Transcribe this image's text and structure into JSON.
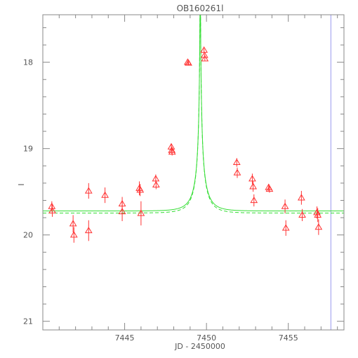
{
  "chart_data": {
    "type": "scatter",
    "title": "OB160261l",
    "xlabel": "JD - 2450000",
    "ylabel": "I",
    "xlim": [
      7440.0,
      7458.4
    ],
    "ylim": [
      21.1,
      17.45
    ],
    "y_inverted": true,
    "x_ticks": [
      7445,
      7450,
      7455
    ],
    "x_tick_labels": [
      "7445",
      "7450",
      "7455"
    ],
    "y_ticks": [
      18,
      19,
      20,
      21
    ],
    "y_tick_labels": [
      "18",
      "19",
      "20",
      "21"
    ],
    "grid": false,
    "legend": "none",
    "series": [
      {
        "kind": "data",
        "marker": "triangle",
        "color": "#ff3333",
        "points": [
          {
            "x": 7440.55,
            "y": 19.67,
            "err": 0.06
          },
          {
            "x": 7440.58,
            "y": 19.72,
            "err": 0.07
          },
          {
            "x": 7441.85,
            "y": 19.87,
            "err": 0.1
          },
          {
            "x": 7441.9,
            "y": 20.0,
            "err": 0.09
          },
          {
            "x": 7442.8,
            "y": 19.49,
            "err": 0.09
          },
          {
            "x": 7442.8,
            "y": 19.95,
            "err": 0.12
          },
          {
            "x": 7443.8,
            "y": 19.54,
            "err": 0.09
          },
          {
            "x": 7444.85,
            "y": 19.64,
            "err": 0.08
          },
          {
            "x": 7444.85,
            "y": 19.73,
            "err": 0.11
          },
          {
            "x": 7445.9,
            "y": 19.46,
            "err": 0.08
          },
          {
            "x": 7445.95,
            "y": 19.48,
            "err": 0.07
          },
          {
            "x": 7446.0,
            "y": 19.75,
            "err": 0.14
          },
          {
            "x": 7446.9,
            "y": 19.35,
            "err": 0.05
          },
          {
            "x": 7446.92,
            "y": 19.42,
            "err": 0.05
          },
          {
            "x": 7447.85,
            "y": 18.98,
            "err": 0.04
          },
          {
            "x": 7447.88,
            "y": 19.02,
            "err": 0.04
          },
          {
            "x": 7447.9,
            "y": 19.04,
            "err": 0.04
          },
          {
            "x": 7448.85,
            "y": 18.0,
            "err": 0.02
          },
          {
            "x": 7448.9,
            "y": 18.01,
            "err": 0.02
          },
          {
            "x": 7449.85,
            "y": 17.86,
            "err": 0.02
          },
          {
            "x": 7449.88,
            "y": 17.92,
            "err": 0.02
          },
          {
            "x": 7449.9,
            "y": 17.96,
            "err": 0.02
          },
          {
            "x": 7451.85,
            "y": 19.16,
            "err": 0.05
          },
          {
            "x": 7451.88,
            "y": 19.28,
            "err": 0.06
          },
          {
            "x": 7452.8,
            "y": 19.35,
            "err": 0.06
          },
          {
            "x": 7452.85,
            "y": 19.44,
            "err": 0.06
          },
          {
            "x": 7452.9,
            "y": 19.6,
            "err": 0.07
          },
          {
            "x": 7453.8,
            "y": 19.45,
            "err": 0.04
          },
          {
            "x": 7453.85,
            "y": 19.47,
            "err": 0.04
          },
          {
            "x": 7454.8,
            "y": 19.67,
            "err": 0.08
          },
          {
            "x": 7454.85,
            "y": 19.92,
            "err": 0.09
          },
          {
            "x": 7455.8,
            "y": 19.57,
            "err": 0.08
          },
          {
            "x": 7455.85,
            "y": 19.77,
            "err": 0.07
          },
          {
            "x": 7456.75,
            "y": 19.74,
            "err": 0.07
          },
          {
            "x": 7456.8,
            "y": 19.77,
            "err": 0.08
          },
          {
            "x": 7456.85,
            "y": 19.91,
            "err": 0.09
          }
        ]
      },
      {
        "kind": "model",
        "style": "solid",
        "color": "#33dd33",
        "params": {
          "t0": 7449.62,
          "tE": 0.9,
          "u0": 0.02,
          "I_source": 21.45,
          "I_blend": 19.97
        }
      },
      {
        "kind": "model",
        "style": "dashed",
        "color": "#33dd33",
        "params": {
          "t0": 7449.62,
          "tE": 0.9,
          "u0": 0.02,
          "I_source": 21.45,
          "I_blend": 20.0
        }
      }
    ],
    "vertical_line": {
      "x": 7457.6,
      "color": "#9999ee"
    }
  }
}
